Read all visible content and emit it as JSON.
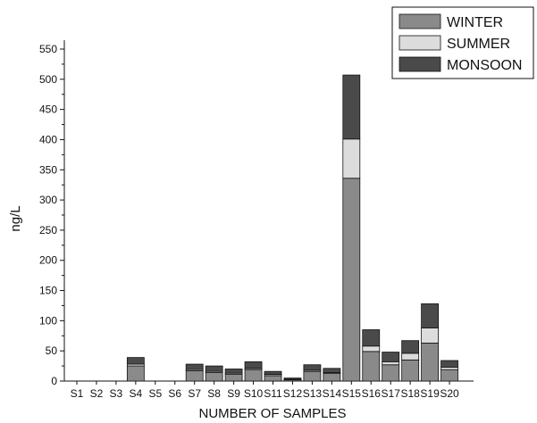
{
  "chart_data": {
    "type": "bar",
    "stacked": true,
    "xlabel": "NUMBER OF SAMPLES",
    "ylabel": "ng/L",
    "ylim": [
      0,
      550
    ],
    "yticks": [
      0,
      50,
      100,
      150,
      200,
      250,
      300,
      350,
      400,
      450,
      500,
      550
    ],
    "categories": [
      "S1",
      "S2",
      "S3",
      "S4",
      "S5",
      "S6",
      "S7",
      "S8",
      "S9",
      "S10",
      "S11",
      "S12",
      "S13",
      "S14",
      "S15",
      "S16",
      "S17",
      "S18",
      "S19",
      "S20"
    ],
    "series": [
      {
        "name": "WINTER",
        "color": "#8a8a8a",
        "values": [
          0,
          0,
          0,
          25,
          0,
          0,
          17,
          14,
          11,
          19,
          9,
          2,
          16,
          13,
          336,
          49,
          27,
          35,
          63,
          19
        ]
      },
      {
        "name": "SUMMER",
        "color": "#dcdcdc",
        "values": [
          0,
          0,
          0,
          3,
          0,
          0,
          2,
          2,
          2,
          2,
          2,
          1,
          2,
          1,
          65,
          9,
          5,
          11,
          25,
          4
        ]
      },
      {
        "name": "MONSOON",
        "color": "#4a4a4a",
        "values": [
          0,
          0,
          0,
          11,
          0,
          0,
          9,
          9,
          7,
          11,
          5,
          2,
          9,
          7,
          106,
          27,
          16,
          21,
          40,
          11
        ]
      }
    ],
    "grid": false,
    "legend_position": "top-right"
  }
}
